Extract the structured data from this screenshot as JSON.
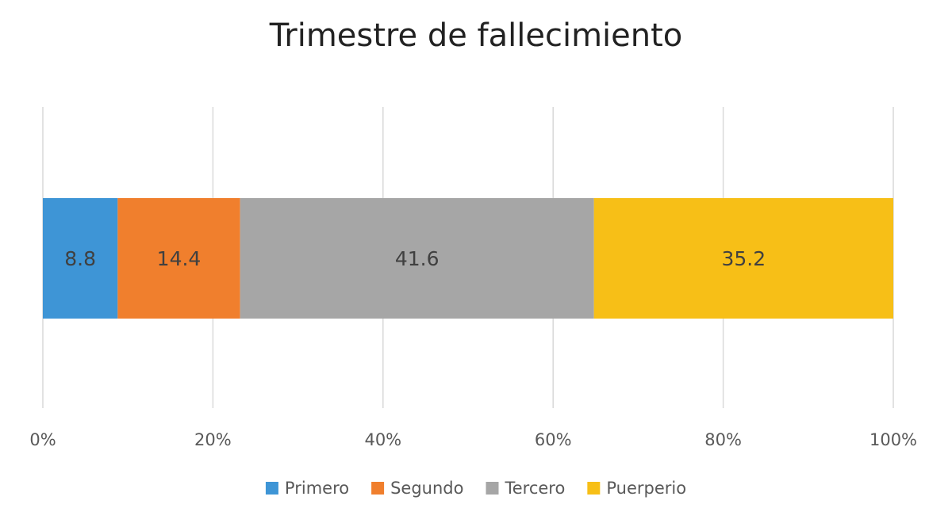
{
  "chart_data": {
    "type": "bar",
    "orientation": "horizontal",
    "stacked": "100%",
    "title": "Trimestre de fallecimiento",
    "xlabel": "",
    "ylabel": "",
    "xlim": [
      0,
      100
    ],
    "x_ticks": [
      "0%",
      "20%",
      "40%",
      "60%",
      "80%",
      "100%"
    ],
    "grid": "vertical",
    "legend_position": "bottom",
    "series": [
      {
        "name": "Primero",
        "value": 8.8,
        "label": "8.8",
        "color": "#3e95d6"
      },
      {
        "name": "Segundo",
        "value": 14.4,
        "label": "14.4",
        "color": "#f07f2d"
      },
      {
        "name": "Tercero",
        "value": 41.6,
        "label": "41.6",
        "color": "#a6a6a6"
      },
      {
        "name": "Puerperio",
        "value": 35.2,
        "label": "35.2",
        "color": "#f7bf17"
      }
    ]
  }
}
